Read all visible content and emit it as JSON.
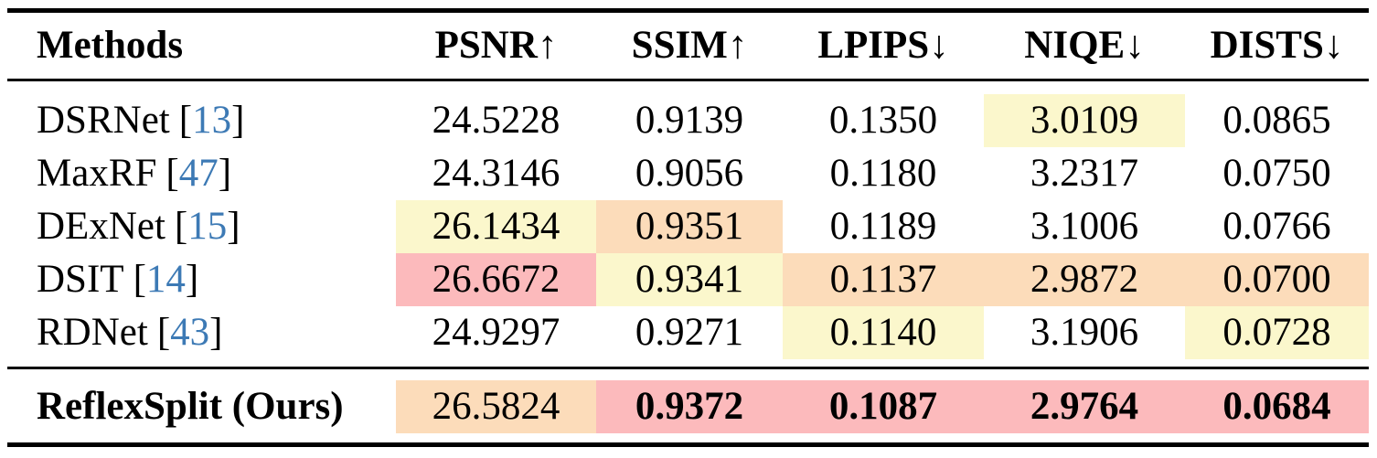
{
  "colors": {
    "best": "#fcbabc",
    "second": "#fcdcba",
    "third": "#fbf7cc",
    "citation": "#3d7ab5"
  },
  "header": {
    "methods": "Methods",
    "psnr": "PSNR↑",
    "ssim": "SSIM↑",
    "lpips": "LPIPS↓",
    "niqe": "NIQE↓",
    "dists": "DISTS↓"
  },
  "punctuation": {
    "cite_open": "[",
    "cite_close": "]"
  },
  "rows": [
    {
      "method": "DSRNet",
      "cite": "13",
      "psnr": "24.5228",
      "ssim": "0.9139",
      "lpips": "0.1350",
      "niqe": "3.0109",
      "dists": "0.0865",
      "highlights": {
        "niqe": "third"
      }
    },
    {
      "method": "MaxRF",
      "cite": "47",
      "psnr": "24.3146",
      "ssim": "0.9056",
      "lpips": "0.1180",
      "niqe": "3.2317",
      "dists": "0.0750",
      "highlights": {}
    },
    {
      "method": "DExNet",
      "cite": "15",
      "psnr": "26.1434",
      "ssim": "0.9351",
      "lpips": "0.1189",
      "niqe": "3.1006",
      "dists": "0.0766",
      "highlights": {
        "psnr": "third",
        "ssim": "second"
      }
    },
    {
      "method": "DSIT",
      "cite": "14",
      "psnr": "26.6672",
      "ssim": "0.9341",
      "lpips": "0.1137",
      "niqe": "2.9872",
      "dists": "0.0700",
      "highlights": {
        "psnr": "best",
        "ssim": "third",
        "lpips": "second",
        "niqe": "second",
        "dists": "second"
      }
    },
    {
      "method": "RDNet",
      "cite": "43",
      "psnr": "24.9297",
      "ssim": "0.9271",
      "lpips": "0.1140",
      "niqe": "3.1906",
      "dists": "0.0728",
      "highlights": {
        "lpips": "third",
        "dists": "third"
      }
    }
  ],
  "ours": {
    "method": "ReflexSplit (Ours)",
    "psnr": "26.5824",
    "ssim": "0.9372",
    "lpips": "0.1087",
    "niqe": "2.9764",
    "dists": "0.0684",
    "highlights": {
      "psnr": "second",
      "ssim": "best",
      "lpips": "best",
      "niqe": "best",
      "dists": "best"
    }
  }
}
